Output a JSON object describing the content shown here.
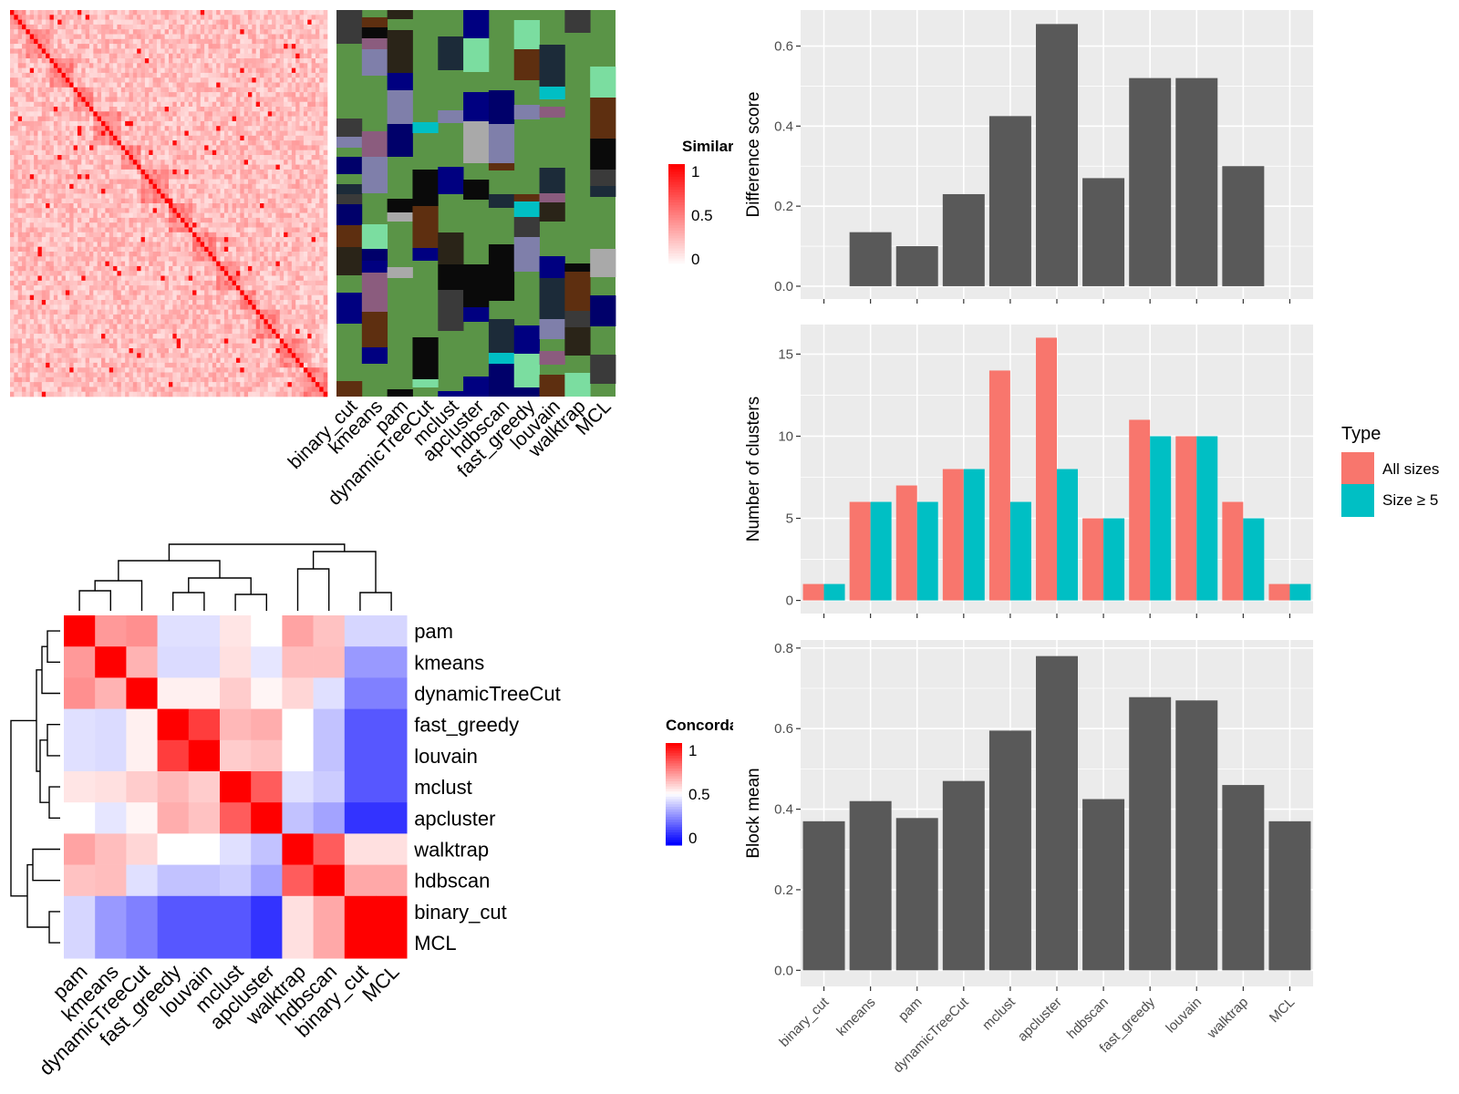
{
  "colors": {
    "panel_bg": "#EBEBEB",
    "grid": "#FFFFFF",
    "bar": "#595959",
    "all_sizes": "#F8766D",
    "size_ge5": "#00BFC4",
    "heat_high": "#FF0000",
    "heat_mid": "#FFFFFF",
    "heat_low": "#0000FF",
    "cluster_green": "#5A9447"
  },
  "methods": [
    "binary_cut",
    "kmeans",
    "pam",
    "dynamicTreeCut",
    "mclust",
    "apcluster",
    "hdbscan",
    "fast_greedy",
    "louvain",
    "walktrap",
    "MCL"
  ],
  "similarity_legend": {
    "title": "Similarity",
    "ticks": [
      "1",
      "0.5",
      "0"
    ]
  },
  "concordance_legend": {
    "title": "Concordance",
    "ticks": [
      "1",
      "0.5",
      "0"
    ]
  },
  "concordance_order": [
    "pam",
    "kmeans",
    "dynamicTreeCut",
    "fast_greedy",
    "louvain",
    "mclust",
    "apcluster",
    "walktrap",
    "hdbscan",
    "binary_cut",
    "MCL"
  ],
  "concordance_matrix": [
    [
      1.0,
      0.7,
      0.72,
      0.44,
      0.44,
      0.55,
      0.5,
      0.68,
      0.62,
      0.42,
      0.42
    ],
    [
      0.7,
      1.0,
      0.65,
      0.43,
      0.43,
      0.56,
      0.45,
      0.63,
      0.63,
      0.3,
      0.3
    ],
    [
      0.72,
      0.65,
      1.0,
      0.53,
      0.53,
      0.6,
      0.52,
      0.58,
      0.44,
      0.25,
      0.25
    ],
    [
      0.44,
      0.43,
      0.53,
      1.0,
      0.88,
      0.64,
      0.66,
      0.5,
      0.38,
      0.17,
      0.17
    ],
    [
      0.44,
      0.43,
      0.53,
      0.88,
      1.0,
      0.6,
      0.62,
      0.5,
      0.38,
      0.17,
      0.17
    ],
    [
      0.55,
      0.56,
      0.6,
      0.64,
      0.6,
      1.0,
      0.82,
      0.44,
      0.4,
      0.17,
      0.17
    ],
    [
      0.5,
      0.45,
      0.52,
      0.66,
      0.62,
      0.82,
      1.0,
      0.38,
      0.32,
      0.1,
      0.1
    ],
    [
      0.68,
      0.63,
      0.58,
      0.5,
      0.5,
      0.44,
      0.38,
      1.0,
      0.82,
      0.56,
      0.56
    ],
    [
      0.62,
      0.63,
      0.44,
      0.38,
      0.38,
      0.4,
      0.32,
      0.82,
      1.0,
      0.67,
      0.67
    ],
    [
      0.42,
      0.3,
      0.25,
      0.17,
      0.17,
      0.17,
      0.1,
      0.56,
      0.67,
      1.0,
      1.0
    ],
    [
      0.42,
      0.3,
      0.25,
      0.17,
      0.17,
      0.17,
      0.1,
      0.56,
      0.67,
      1.0,
      1.0
    ]
  ],
  "chart_data": [
    {
      "type": "bar",
      "categories": [
        "binary_cut",
        "kmeans",
        "pam",
        "dynamicTreeCut",
        "mclust",
        "apcluster",
        "hdbscan",
        "fast_greedy",
        "louvain",
        "walktrap",
        "MCL"
      ],
      "values": [
        0,
        0.135,
        0.1,
        0.23,
        0.425,
        0.655,
        0.27,
        0.52,
        0.52,
        0.3,
        0
      ],
      "ylabel": "Difference score",
      "ylim": [
        -0.032,
        0.69
      ],
      "yticks": [
        0.0,
        0.2,
        0.4,
        0.6
      ],
      "ytick_labels": [
        "0.0",
        "0.2",
        "0.4",
        "0.6"
      ],
      "grid": true
    },
    {
      "type": "bar",
      "categories": [
        "binary_cut",
        "kmeans",
        "pam",
        "dynamicTreeCut",
        "mclust",
        "apcluster",
        "hdbscan",
        "fast_greedy",
        "louvain",
        "walktrap",
        "MCL"
      ],
      "series": [
        {
          "name": "All sizes",
          "values": [
            1,
            6,
            7,
            8,
            14,
            16,
            5,
            11,
            10,
            6,
            1
          ]
        },
        {
          "name": "Size ≥ 5",
          "values": [
            1,
            6,
            6,
            8,
            6,
            8,
            5,
            10,
            10,
            5,
            1
          ]
        }
      ],
      "ylabel": "Number of clusters",
      "ylim": [
        -0.8,
        16.8
      ],
      "yticks": [
        0,
        5,
        10,
        15
      ],
      "ytick_labels": [
        "0",
        "5",
        "10",
        "15"
      ],
      "legend": {
        "title": "Type",
        "position": "right"
      },
      "grid": true
    },
    {
      "type": "bar",
      "categories": [
        "binary_cut",
        "kmeans",
        "pam",
        "dynamicTreeCut",
        "mclust",
        "apcluster",
        "hdbscan",
        "fast_greedy",
        "louvain",
        "walktrap",
        "MCL"
      ],
      "values": [
        0.37,
        0.42,
        0.378,
        0.47,
        0.595,
        0.78,
        0.425,
        0.678,
        0.67,
        0.46,
        0.37
      ],
      "ylabel": "Block mean",
      "ylim": [
        -0.04,
        0.82
      ],
      "yticks": [
        0.0,
        0.2,
        0.4,
        0.6,
        0.8
      ],
      "ytick_labels": [
        "0.0",
        "0.2",
        "0.4",
        "0.6",
        "0.8"
      ],
      "grid": true
    },
    {
      "type": "heatmap",
      "title": "",
      "xlabel": "",
      "ylabel": ""
    }
  ]
}
